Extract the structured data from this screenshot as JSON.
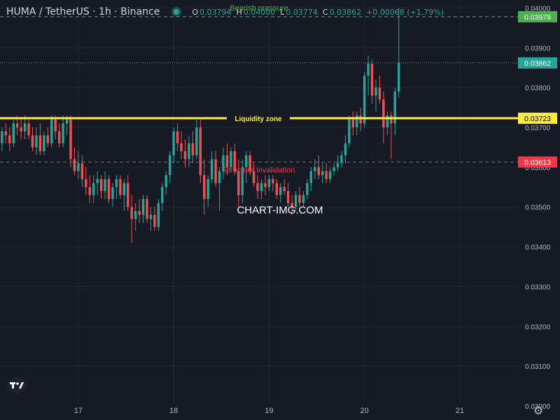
{
  "legend": {
    "symbol": "HUMA / TetherUS · 1h · Binance",
    "open_label": "O",
    "open": "0.03794",
    "high_label": "H",
    "high": "0.04000",
    "low_label": "L",
    "low": "0.03774",
    "close_label": "C",
    "close": "0.03862",
    "change": "+0.00068 (+1.79%)"
  },
  "watermark": "CHART-IMG.COM",
  "colors": {
    "background": "#161a25",
    "grid": "#232733",
    "up": "#26a69a",
    "down": "#ef5350",
    "yellow": "#ffeb3b",
    "green_line": "#4caf50",
    "red_line": "#f23645"
  },
  "chart_data": {
    "type": "candlestick",
    "y_range": [
      0.03,
      0.0405
    ],
    "y_ticks": [
      "0.04000",
      "0.03900",
      "0.03800",
      "0.03700",
      "0.03600",
      "0.03500",
      "0.03400",
      "0.03300",
      "0.03200",
      "0.03100",
      "0.03000"
    ],
    "x_ticks": [
      "17",
      "18",
      "19",
      "20",
      "21"
    ],
    "x_tick_index": [
      22,
      47,
      72,
      97,
      122
    ],
    "grid": true,
    "levels": [
      {
        "name": "Bearish pressure",
        "value": 0.03978,
        "label": "0.03978",
        "style": "dashed",
        "color": "#4caf50"
      },
      {
        "name": "Liquidity zone",
        "value": 0.03723,
        "label": "0.03723",
        "style": "solid",
        "color": "#ffeb3b"
      },
      {
        "name": "Structure invalidation",
        "value": 0.03613,
        "label": "0.03613",
        "style": "dashed",
        "color": "#f23645"
      }
    ],
    "last_price": {
      "value": 0.03862,
      "label": "0.03862",
      "color": "#26a69a"
    },
    "candles": [
      [
        0.0369,
        0.0371,
        0.0365,
        0.0367
      ],
      [
        0.0367,
        0.037,
        0.0364,
        0.0366
      ],
      [
        0.0366,
        0.037,
        0.0364,
        0.0369
      ],
      [
        0.0369,
        0.0371,
        0.0366,
        0.0368
      ],
      [
        0.0368,
        0.037,
        0.0364,
        0.0366
      ],
      [
        0.0366,
        0.0372,
        0.0365,
        0.0371
      ],
      [
        0.0371,
        0.0373,
        0.0368,
        0.037
      ],
      [
        0.037,
        0.0372,
        0.0367,
        0.0369
      ],
      [
        0.0369,
        0.0373,
        0.0367,
        0.0371
      ],
      [
        0.0371,
        0.0372,
        0.0367,
        0.0368
      ],
      [
        0.0368,
        0.037,
        0.0364,
        0.0365
      ],
      [
        0.0365,
        0.037,
        0.0363,
        0.0368
      ],
      [
        0.0368,
        0.0371,
        0.0363,
        0.0364
      ],
      [
        0.0364,
        0.0369,
        0.0363,
        0.0368
      ],
      [
        0.0368,
        0.037,
        0.0365,
        0.0366
      ],
      [
        0.0366,
        0.0373,
        0.0365,
        0.0372
      ],
      [
        0.0372,
        0.0373,
        0.0367,
        0.0369
      ],
      [
        0.0369,
        0.0371,
        0.0365,
        0.0366
      ],
      [
        0.0366,
        0.0373,
        0.0365,
        0.0371
      ],
      [
        0.0371,
        0.0373,
        0.0368,
        0.0372
      ],
      [
        0.0372,
        0.0373,
        0.036,
        0.0362
      ],
      [
        0.0362,
        0.0365,
        0.0358,
        0.0359
      ],
      [
        0.0359,
        0.0364,
        0.0357,
        0.0361
      ],
      [
        0.0361,
        0.0363,
        0.0355,
        0.0357
      ],
      [
        0.0357,
        0.036,
        0.0353,
        0.0355
      ],
      [
        0.0355,
        0.0358,
        0.0351,
        0.0353
      ],
      [
        0.0353,
        0.0358,
        0.0351,
        0.0356
      ],
      [
        0.0356,
        0.0359,
        0.0353,
        0.0357
      ],
      [
        0.0357,
        0.0358,
        0.0352,
        0.0354
      ],
      [
        0.0354,
        0.0359,
        0.0352,
        0.0357
      ],
      [
        0.0357,
        0.0358,
        0.0351,
        0.0352
      ],
      [
        0.0352,
        0.0356,
        0.035,
        0.0355
      ],
      [
        0.0355,
        0.0358,
        0.0352,
        0.0357
      ],
      [
        0.0357,
        0.0358,
        0.0352,
        0.0353
      ],
      [
        0.0353,
        0.0357,
        0.0349,
        0.0356
      ],
      [
        0.0356,
        0.0358,
        0.0349,
        0.035
      ],
      [
        0.035,
        0.0353,
        0.0341,
        0.0347
      ],
      [
        0.0347,
        0.0351,
        0.0344,
        0.0349
      ],
      [
        0.0349,
        0.0352,
        0.0346,
        0.0348
      ],
      [
        0.0348,
        0.0353,
        0.0346,
        0.0352
      ],
      [
        0.0352,
        0.0353,
        0.0346,
        0.0347
      ],
      [
        0.0347,
        0.035,
        0.0344,
        0.0348
      ],
      [
        0.0348,
        0.035,
        0.0344,
        0.0345
      ],
      [
        0.0345,
        0.0352,
        0.0344,
        0.0351
      ],
      [
        0.0351,
        0.0356,
        0.0349,
        0.0355
      ],
      [
        0.0355,
        0.0359,
        0.0353,
        0.0358
      ],
      [
        0.0358,
        0.0364,
        0.0356,
        0.0363
      ],
      [
        0.0363,
        0.037,
        0.0361,
        0.0369
      ],
      [
        0.0369,
        0.0371,
        0.0364,
        0.0366
      ],
      [
        0.0366,
        0.0369,
        0.0362,
        0.0364
      ],
      [
        0.0364,
        0.0367,
        0.036,
        0.0362
      ],
      [
        0.0362,
        0.0368,
        0.036,
        0.0366
      ],
      [
        0.0366,
        0.0369,
        0.0361,
        0.0363
      ],
      [
        0.0363,
        0.0372,
        0.0362,
        0.037
      ],
      [
        0.037,
        0.0372,
        0.0356,
        0.0358
      ],
      [
        0.0358,
        0.0362,
        0.0348,
        0.0352
      ],
      [
        0.0352,
        0.0358,
        0.035,
        0.0357
      ],
      [
        0.0357,
        0.0364,
        0.0356,
        0.0362
      ],
      [
        0.0362,
        0.0364,
        0.0355,
        0.0356
      ],
      [
        0.0356,
        0.036,
        0.0349,
        0.0359
      ],
      [
        0.0359,
        0.0365,
        0.0357,
        0.0363
      ],
      [
        0.0363,
        0.0366,
        0.0358,
        0.036
      ],
      [
        0.036,
        0.0365,
        0.0359,
        0.0364
      ],
      [
        0.0364,
        0.0366,
        0.0358,
        0.0359
      ],
      [
        0.0359,
        0.0362,
        0.035,
        0.0353
      ],
      [
        0.0353,
        0.0362,
        0.0351,
        0.036
      ],
      [
        0.036,
        0.0364,
        0.0356,
        0.0363
      ],
      [
        0.0363,
        0.0364,
        0.0358,
        0.0359
      ],
      [
        0.0359,
        0.0361,
        0.0355,
        0.0356
      ],
      [
        0.0356,
        0.0358,
        0.0352,
        0.0354
      ],
      [
        0.0354,
        0.0357,
        0.0352,
        0.0356
      ],
      [
        0.0356,
        0.0358,
        0.0353,
        0.0355
      ],
      [
        0.0355,
        0.0358,
        0.0354,
        0.0357
      ],
      [
        0.0357,
        0.0358,
        0.0354,
        0.0356
      ],
      [
        0.0356,
        0.0357,
        0.0352,
        0.0353
      ],
      [
        0.0353,
        0.0356,
        0.0351,
        0.0355
      ],
      [
        0.0355,
        0.0357,
        0.0353,
        0.0354
      ],
      [
        0.0354,
        0.0356,
        0.035,
        0.0351
      ],
      [
        0.0351,
        0.0353,
        0.0348,
        0.035
      ],
      [
        0.035,
        0.0354,
        0.0349,
        0.0353
      ],
      [
        0.0353,
        0.0355,
        0.035,
        0.0351
      ],
      [
        0.0351,
        0.0354,
        0.035,
        0.0353
      ],
      [
        0.0353,
        0.0357,
        0.0352,
        0.0356
      ],
      [
        0.0356,
        0.036,
        0.0354,
        0.0359
      ],
      [
        0.0359,
        0.0362,
        0.0357,
        0.036
      ],
      [
        0.036,
        0.0363,
        0.0357,
        0.0358
      ],
      [
        0.0358,
        0.0361,
        0.0356,
        0.0359
      ],
      [
        0.0359,
        0.0361,
        0.0356,
        0.0357
      ],
      [
        0.0357,
        0.036,
        0.0356,
        0.0359
      ],
      [
        0.0359,
        0.0361,
        0.0358,
        0.036
      ],
      [
        0.036,
        0.0363,
        0.0359,
        0.0361
      ],
      [
        0.0361,
        0.0364,
        0.036,
        0.0363
      ],
      [
        0.0363,
        0.0368,
        0.0361,
        0.0366
      ],
      [
        0.0366,
        0.0373,
        0.0365,
        0.0372
      ],
      [
        0.0372,
        0.0374,
        0.0368,
        0.037
      ],
      [
        0.037,
        0.0374,
        0.0368,
        0.0373
      ],
      [
        0.0373,
        0.0375,
        0.0369,
        0.0371
      ],
      [
        0.0371,
        0.0384,
        0.037,
        0.0383
      ],
      [
        0.0383,
        0.0388,
        0.0378,
        0.0386
      ],
      [
        0.0386,
        0.0387,
        0.0376,
        0.0378
      ],
      [
        0.0378,
        0.0382,
        0.0374,
        0.038
      ],
      [
        0.038,
        0.0383,
        0.0376,
        0.0377
      ],
      [
        0.0377,
        0.0379,
        0.0366,
        0.037
      ],
      [
        0.037,
        0.0374,
        0.0368,
        0.0373
      ],
      [
        0.0373,
        0.0374,
        0.0362,
        0.0371
      ],
      [
        0.0371,
        0.038,
        0.0368,
        0.0379
      ],
      [
        0.0379,
        0.04,
        0.03774,
        0.03862
      ]
    ]
  }
}
